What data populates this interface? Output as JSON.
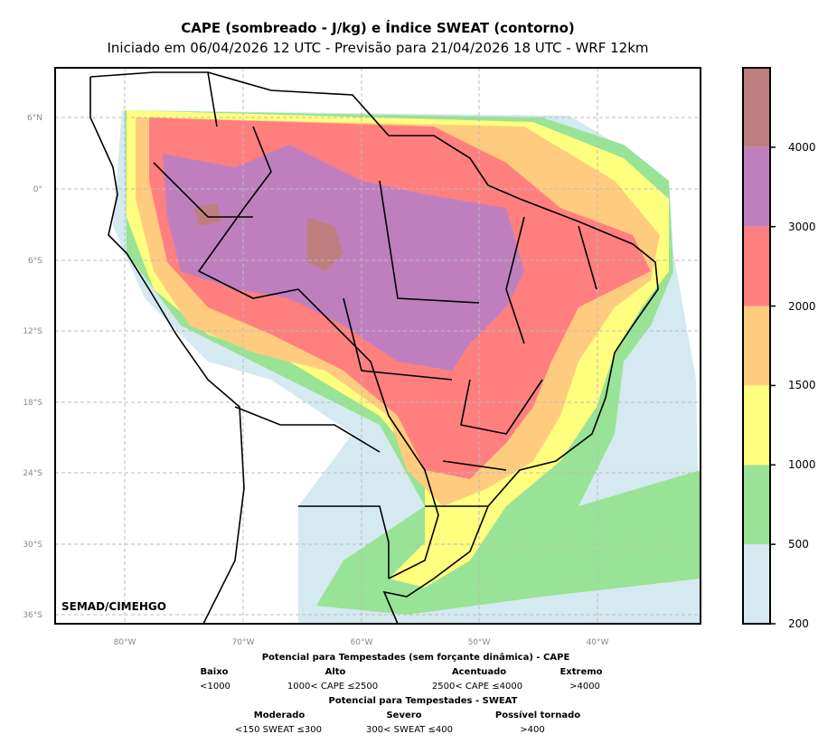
{
  "title": "CAPE (sombreado - J/kg) e Índice SWEAT (contorno)",
  "subtitle": "Iniciado em 06/04/2026 12 UTC - Previsão para 21/04/2026 18 UTC - WRF 12km",
  "credit": "SEMAD/CIMEHGO",
  "map": {
    "lat_ticks": [
      "6°N",
      "0°",
      "6°S",
      "12°S",
      "18°S",
      "24°S",
      "30°S",
      "36°S"
    ],
    "lon_ticks": [
      "80°W",
      "70°W",
      "60°W",
      "50°W",
      "40°W"
    ]
  },
  "colorbar": {
    "labels": [
      "200",
      "500",
      "1000",
      "1500",
      "2000",
      "3000",
      "4000"
    ],
    "colors": [
      "#d4e9f0",
      "#98e395",
      "#ffff7f",
      "#ffcc7f",
      "#ff7f7f",
      "#bf7fbf",
      "#bf7f7f"
    ]
  },
  "legend": {
    "cape_title": "Potencial para Tempestades (sem forçante dinâmica) - CAPE",
    "cape": [
      {
        "name": "Baixo",
        "range": "<1000"
      },
      {
        "name": "Alto",
        "range": "1000< CAPE ≤2500"
      },
      {
        "name": "Acentuado",
        "range": "2500< CAPE ≤4000"
      },
      {
        "name": "Extremo",
        "range": ">4000"
      }
    ],
    "sweat_title": "Potencial para Tempestades - SWEAT",
    "sweat": [
      {
        "name": "Moderado",
        "range": "<150 SWEAT ≤300"
      },
      {
        "name": "Severo",
        "range": "300< SWEAT ≤400"
      },
      {
        "name": "Possível tornado",
        "range": ">400"
      }
    ]
  }
}
